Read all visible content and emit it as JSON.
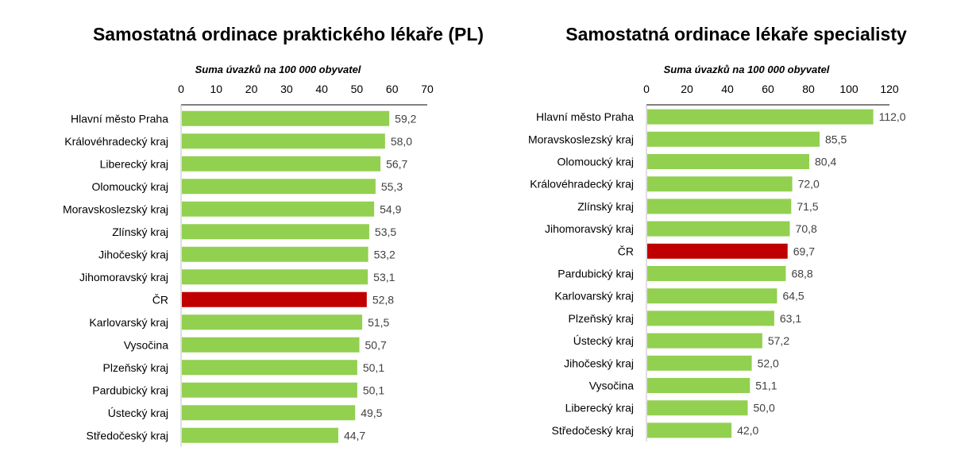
{
  "chart_data": [
    {
      "type": "bar",
      "orientation": "horizontal",
      "title": "Samostatná ordinace praktického lékaře (PL)",
      "xlabel": "Suma úvazků na 100 000 obyvatel",
      "xlim": [
        0,
        70
      ],
      "ticks": [
        "0",
        "10",
        "20",
        "30",
        "40",
        "50",
        "60",
        "70"
      ],
      "categories": [
        "Hlavní město Praha",
        "Královéhradecký kraj",
        "Liberecký kraj",
        "Olomoucký kraj",
        "Moravskoslezský kraj",
        "Zlínský kraj",
        "Jihočeský kraj",
        "Jihomoravský kraj",
        "ČR",
        "Karlovarský kraj",
        "Vysočina",
        "Plzeňský kraj",
        "Pardubický kraj",
        "Ústecký kraj",
        "Středočeský kraj"
      ],
      "values": [
        59.2,
        58.0,
        56.7,
        55.3,
        54.9,
        53.5,
        53.2,
        53.1,
        52.8,
        51.5,
        50.7,
        50.1,
        50.1,
        49.5,
        44.7
      ],
      "value_labels": [
        "59,2",
        "58,0",
        "56,7",
        "55,3",
        "54,9",
        "53,5",
        "53,2",
        "53,1",
        "52,8",
        "51,5",
        "50,7",
        "50,1",
        "50,1",
        "49,5",
        "44,7"
      ],
      "highlight_category": "ČR",
      "colors": {
        "bar": "#92d050",
        "highlight": "#c00000"
      },
      "grid": false,
      "legend": "none"
    },
    {
      "type": "bar",
      "orientation": "horizontal",
      "title": "Samostatná ordinace lékaře specialisty",
      "xlabel": "Suma úvazků na 100 000 obyvatel",
      "xlim": [
        0,
        120
      ],
      "ticks": [
        "0",
        "20",
        "40",
        "60",
        "80",
        "100",
        "120"
      ],
      "categories": [
        "Hlavní město Praha",
        "Moravskoslezský kraj",
        "Olomoucký kraj",
        "Královéhradecký kraj",
        "Zlínský kraj",
        "Jihomoravský kraj",
        "ČR",
        "Pardubický kraj",
        "Karlovarský kraj",
        "Plzeňský kraj",
        "Ústecký kraj",
        "Jihočeský kraj",
        "Vysočina",
        "Liberecký kraj",
        "Středočeský kraj"
      ],
      "values": [
        112.0,
        85.5,
        80.4,
        72.0,
        71.5,
        70.8,
        69.7,
        68.8,
        64.5,
        63.1,
        57.2,
        52.0,
        51.1,
        50.0,
        42.0
      ],
      "value_labels": [
        "112,0",
        "85,5",
        "80,4",
        "72,0",
        "71,5",
        "70,8",
        "69,7",
        "68,8",
        "64,5",
        "63,1",
        "57,2",
        "52,0",
        "51,1",
        "50,0",
        "42,0"
      ],
      "highlight_category": "ČR",
      "colors": {
        "bar": "#92d050",
        "highlight": "#c00000"
      },
      "grid": false,
      "legend": "none"
    }
  ]
}
